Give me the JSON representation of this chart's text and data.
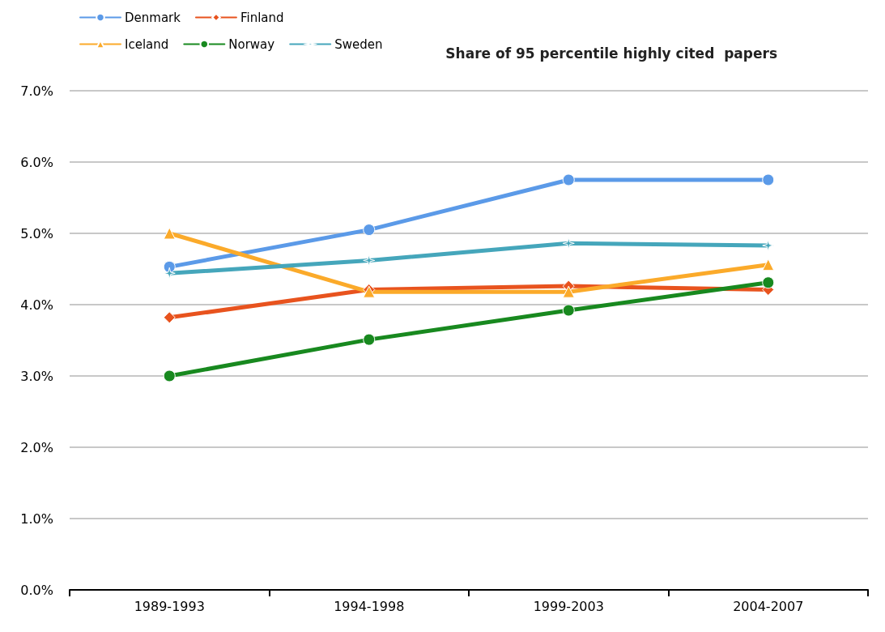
{
  "chart_data": {
    "type": "line",
    "title": "Share of 95 percentile highly cited  papers",
    "categories": [
      "1989-1993",
      "1994-1998",
      "1999-2003",
      "2004-2007"
    ],
    "series": [
      {
        "name": "Denmark",
        "color": "#5b9ae8",
        "marker": "circle",
        "values": [
          4.53,
          5.05,
          5.75,
          5.75
        ]
      },
      {
        "name": "Finland",
        "color": "#e8531e",
        "marker": "diamond",
        "values": [
          3.82,
          4.21,
          4.26,
          4.21
        ]
      },
      {
        "name": "Iceland",
        "color": "#fbaa2a",
        "marker": "triangle",
        "values": [
          5.0,
          4.18,
          4.18,
          4.56
        ]
      },
      {
        "name": "Norway",
        "color": "#18891f",
        "marker": "circle",
        "values": [
          3.0,
          3.51,
          3.92,
          4.31
        ]
      },
      {
        "name": "Sweden",
        "color": "#45a6bb",
        "marker": "star",
        "values": [
          4.44,
          4.62,
          4.86,
          4.83
        ]
      }
    ],
    "ylim": [
      0,
      7
    ],
    "yticks": [
      {
        "value": 0,
        "label": "0.0%"
      },
      {
        "value": 1,
        "label": "1.0%"
      },
      {
        "value": 2,
        "label": "2.0%"
      },
      {
        "value": 3,
        "label": "3.0%"
      },
      {
        "value": 4,
        "label": "4.0%"
      },
      {
        "value": 5,
        "label": "5.0%"
      },
      {
        "value": 6,
        "label": "6.0%"
      },
      {
        "value": 7,
        "label": "7.0%"
      }
    ],
    "grid": "y",
    "legend": "top left"
  }
}
